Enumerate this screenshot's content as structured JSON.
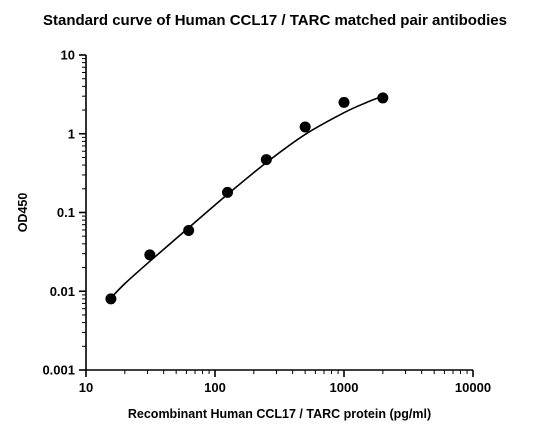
{
  "chart_data": {
    "type": "scatter",
    "title": "Standard curve of Human CCL17 / TARC matched pair antibodies",
    "xlabel": "Recombinant Human CCL17 / TARC protein (pg/ml)",
    "ylabel": "OD450",
    "x_scale": "log",
    "y_scale": "log",
    "xlim": [
      10,
      10000
    ],
    "ylim": [
      0.001,
      10
    ],
    "x_ticks": [
      {
        "value": 10,
        "label": "10"
      },
      {
        "value": 100,
        "label": "100"
      },
      {
        "value": 1000,
        "label": "1000"
      },
      {
        "value": 10000,
        "label": "10000"
      }
    ],
    "y_ticks": [
      {
        "value": 10,
        "label": "10"
      },
      {
        "value": 1,
        "label": "1"
      },
      {
        "value": 0.1,
        "label": "0.1"
      },
      {
        "value": 0.01,
        "label": "0.01"
      },
      {
        "value": 0.001,
        "label": "0.001"
      }
    ],
    "grid": false,
    "series": [
      {
        "x": [
          15.6,
          31.25,
          62.5,
          125,
          250,
          500,
          1000,
          2000
        ],
        "y": [
          0.008,
          0.029,
          0.059,
          0.18,
          0.47,
          1.22,
          2.5,
          2.85
        ]
      }
    ],
    "fit_curve": {
      "x": [
        15.6,
        20,
        31.25,
        62.5,
        125,
        250,
        500,
        1000,
        1500,
        2000
      ],
      "y": [
        0.0082,
        0.0125,
        0.024,
        0.064,
        0.17,
        0.43,
        0.98,
        1.85,
        2.5,
        3.0
      ]
    },
    "marker_color": "#000000",
    "line_color": "#000000"
  }
}
